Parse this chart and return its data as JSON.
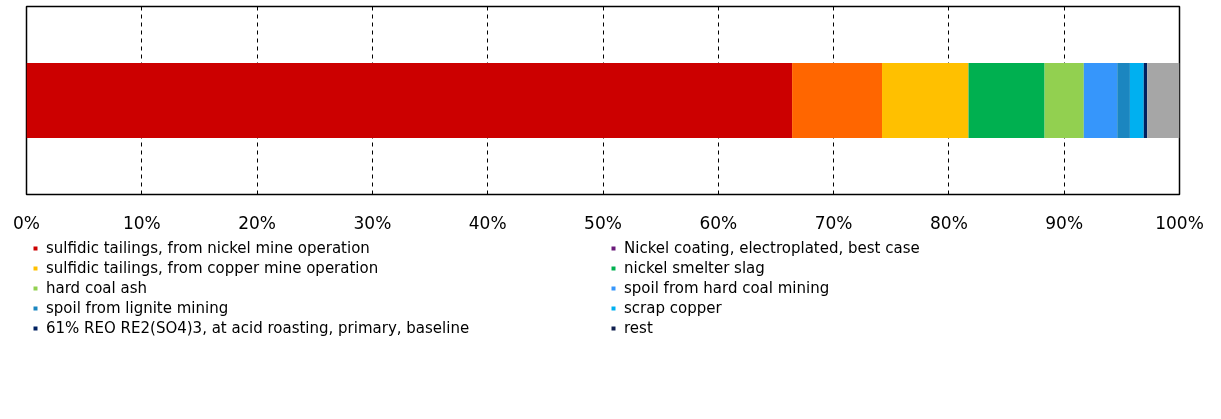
{
  "chart_data": {
    "type": "bar",
    "orientation": "horizontal",
    "stacked": true,
    "categories": [
      null
    ],
    "series": [
      {
        "name": "sulfidic tailings, from nickel mine operation",
        "color": "#cc0000",
        "values": [
          66.4
        ]
      },
      {
        "name": "Nickel coating, electroplated, best case",
        "color": "#6a1a7a",
        "values": [
          0
        ]
      },
      {
        "color": "#ff6600",
        "values": [
          7.8
        ]
      },
      {
        "name": "sulfidic tailings, from copper mine operation",
        "color": "#ffc000",
        "values": [
          7.5
        ]
      },
      {
        "name": "nickel smelter slag",
        "color": "#00b050",
        "values": [
          6.6
        ]
      },
      {
        "name": "hard coal ash",
        "color": "#92d050",
        "values": [
          3.4
        ]
      },
      {
        "name": "spoil from hard coal mining",
        "color": "#3696fb",
        "values": [
          2.9
        ]
      },
      {
        "name": "spoil from lignite mining",
        "color": "#1b86c0",
        "values": [
          1.1
        ]
      },
      {
        "name": "scrap copper",
        "color": "#00b0f0",
        "values": [
          1.2
        ]
      },
      {
        "name": "61% REO RE2(SO4)3, at acid roasting, primary, baseline",
        "color": "#002060",
        "values": [
          0.3
        ]
      },
      {
        "name": "rest",
        "color": "#0f1f4f",
        "values": [
          0
        ]
      },
      {
        "color": "#a6a6a6",
        "values": [
          2.8
        ]
      }
    ],
    "xlim": [
      0,
      100
    ],
    "xticks": [
      {
        "value": 0,
        "label": "0%"
      },
      {
        "value": 10,
        "label": "10%"
      },
      {
        "value": 20,
        "label": "20%"
      },
      {
        "value": 30,
        "label": "30%"
      },
      {
        "value": 40,
        "label": "40%"
      },
      {
        "value": 50,
        "label": "50%"
      },
      {
        "value": 60,
        "label": "60%"
      },
      {
        "value": 70,
        "label": "70%"
      },
      {
        "value": 80,
        "label": "80%"
      },
      {
        "value": 90,
        "label": "90%"
      },
      {
        "value": 100,
        "label": "100%"
      }
    ],
    "grid": "x",
    "legend": "bottom"
  }
}
